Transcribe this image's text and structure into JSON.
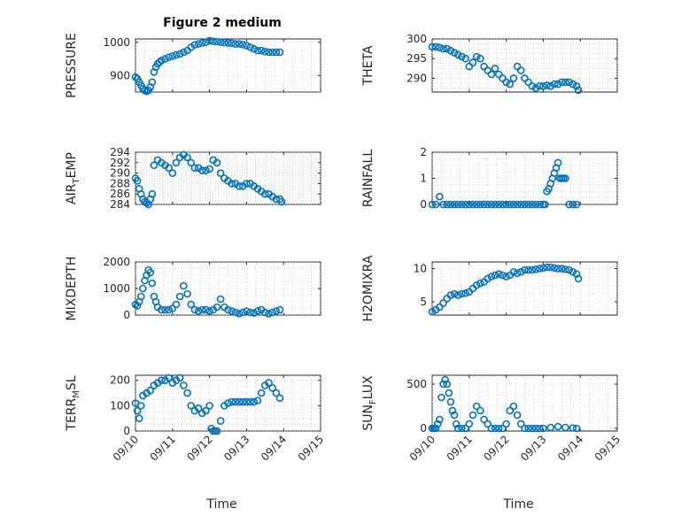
{
  "figure_title": "Figure 2 medium",
  "colors": {
    "marker": "#0072BD",
    "axis": "#262626",
    "grid": "#bdbdbd"
  },
  "x_tick_labels": [
    "09/10",
    "09/11",
    "09/12",
    "09/13",
    "09/14",
    "09/15"
  ],
  "chart_data": [
    {
      "type": "scatter",
      "ylabel": "PRESSURE",
      "xlabel": "",
      "title": "Figure 2 medium",
      "xlim": [
        0,
        5
      ],
      "ylim": [
        850,
        1010
      ],
      "yticks": [
        900,
        1000
      ],
      "grid": true,
      "x": [
        0.0,
        0.05,
        0.1,
        0.15,
        0.2,
        0.25,
        0.3,
        0.35,
        0.4,
        0.45,
        0.5,
        0.55,
        0.6,
        0.65,
        0.7,
        0.8,
        0.9,
        1.0,
        1.1,
        1.2,
        1.3,
        1.4,
        1.5,
        1.6,
        1.7,
        1.8,
        1.9,
        2.0,
        2.1,
        2.2,
        2.3,
        2.4,
        2.5,
        2.6,
        2.7,
        2.8,
        2.9,
        3.0,
        3.1,
        3.2,
        3.3,
        3.4,
        3.5,
        3.6,
        3.7,
        3.8,
        3.9
      ],
      "y": [
        895,
        890,
        880,
        870,
        860,
        855,
        852,
        855,
        865,
        880,
        910,
        925,
        935,
        940,
        945,
        950,
        955,
        958,
        962,
        965,
        970,
        975,
        985,
        992,
        995,
        998,
        1000,
        1005,
        1003,
        1002,
        1000,
        999,
        998,
        997,
        995,
        995,
        993,
        990,
        985,
        980,
        975,
        975,
        972,
        970,
        970,
        970,
        970
      ]
    },
    {
      "type": "scatter",
      "ylabel": "THETA",
      "xlabel": "",
      "xlim": [
        0,
        5
      ],
      "ylim": [
        286.5,
        300
      ],
      "yticks": [
        290,
        295,
        300
      ],
      "grid": true,
      "x": [
        0.0,
        0.1,
        0.2,
        0.3,
        0.4,
        0.5,
        0.6,
        0.7,
        0.8,
        0.9,
        1.0,
        1.1,
        1.2,
        1.3,
        1.4,
        1.5,
        1.6,
        1.7,
        1.8,
        1.9,
        2.0,
        2.1,
        2.2,
        2.3,
        2.4,
        2.5,
        2.6,
        2.7,
        2.8,
        2.9,
        3.0,
        3.1,
        3.2,
        3.3,
        3.4,
        3.5,
        3.6,
        3.7,
        3.8,
        3.9,
        3.95
      ],
      "y": [
        298,
        298,
        297.8,
        297.5,
        297.5,
        297,
        296.5,
        296,
        295.5,
        295,
        293,
        294,
        295.5,
        295,
        293,
        292,
        291,
        292.5,
        291,
        290,
        289,
        288.5,
        290,
        293,
        292,
        290,
        289,
        288,
        287.5,
        288,
        288,
        288.2,
        288,
        288.5,
        288.5,
        289,
        289,
        289,
        288.5,
        288,
        287
      ]
    },
    {
      "type": "scatter",
      "ylabel": "AIR_TEMP",
      "xlabel": "",
      "xlim": [
        0,
        5
      ],
      "ylim": [
        284,
        294
      ],
      "yticks": [
        284,
        286,
        288,
        290,
        292,
        294
      ],
      "grid": true,
      "x": [
        0.0,
        0.05,
        0.1,
        0.15,
        0.2,
        0.25,
        0.3,
        0.35,
        0.4,
        0.45,
        0.5,
        0.6,
        0.7,
        0.8,
        0.9,
        1.0,
        1.1,
        1.2,
        1.3,
        1.4,
        1.5,
        1.6,
        1.7,
        1.8,
        1.9,
        2.0,
        2.1,
        2.2,
        2.3,
        2.4,
        2.5,
        2.6,
        2.7,
        2.8,
        2.9,
        3.0,
        3.1,
        3.2,
        3.3,
        3.4,
        3.5,
        3.6,
        3.7,
        3.8,
        3.9,
        3.95
      ],
      "y": [
        289,
        288.5,
        287,
        286,
        285,
        284.5,
        284.3,
        284,
        285,
        286,
        291.5,
        292.5,
        292,
        291.5,
        291,
        290,
        292,
        293,
        293.5,
        293,
        292,
        291,
        291,
        290.5,
        290.5,
        290.8,
        292.5,
        292,
        290,
        289,
        288.5,
        288,
        288,
        287.5,
        287.5,
        288,
        288,
        287.5,
        287,
        286.5,
        286,
        286,
        285.5,
        285,
        285,
        284.5
      ]
    },
    {
      "type": "scatter",
      "ylabel": "RAINFALL",
      "xlabel": "",
      "xlim": [
        0,
        5
      ],
      "ylim": [
        0,
        2
      ],
      "yticks": [
        0,
        1,
        2
      ],
      "grid": true,
      "x": [
        0.0,
        0.1,
        0.2,
        0.3,
        0.4,
        0.5,
        0.6,
        0.7,
        0.8,
        0.9,
        1.0,
        1.1,
        1.2,
        1.3,
        1.4,
        1.5,
        1.6,
        1.7,
        1.8,
        1.9,
        2.0,
        2.1,
        2.2,
        2.3,
        2.4,
        2.5,
        2.6,
        2.7,
        2.8,
        2.9,
        3.0,
        3.05,
        3.1,
        3.15,
        3.2,
        3.25,
        3.3,
        3.35,
        3.4,
        3.45,
        3.5,
        3.55,
        3.6,
        3.7,
        3.8,
        3.9
      ],
      "y": [
        0,
        0,
        0.3,
        0,
        0,
        0,
        0,
        0,
        0,
        0,
        0,
        0,
        0,
        0,
        0,
        0,
        0,
        0,
        0,
        0,
        0,
        0,
        0,
        0,
        0,
        0,
        0,
        0,
        0,
        0,
        0,
        0,
        0.5,
        0.6,
        0.8,
        1.0,
        1.2,
        1.4,
        1.6,
        1.0,
        1.0,
        1.0,
        1.0,
        0,
        0,
        0
      ]
    },
    {
      "type": "scatter",
      "ylabel": "MIXDEPTH",
      "xlabel": "",
      "xlim": [
        0,
        5
      ],
      "ylim": [
        0,
        2000
      ],
      "yticks": [
        0,
        1000,
        2000
      ],
      "grid": true,
      "x": [
        0.0,
        0.05,
        0.1,
        0.15,
        0.2,
        0.25,
        0.3,
        0.35,
        0.4,
        0.45,
        0.5,
        0.55,
        0.6,
        0.7,
        0.8,
        0.9,
        1.0,
        1.1,
        1.2,
        1.3,
        1.4,
        1.5,
        1.6,
        1.7,
        1.8,
        1.9,
        2.0,
        2.1,
        2.2,
        2.3,
        2.4,
        2.5,
        2.6,
        2.7,
        2.8,
        2.9,
        3.0,
        3.1,
        3.2,
        3.3,
        3.4,
        3.5,
        3.6,
        3.7,
        3.8,
        3.9
      ],
      "y": [
        400,
        350,
        500,
        700,
        1000,
        1300,
        1500,
        1700,
        1600,
        1200,
        700,
        500,
        300,
        200,
        200,
        200,
        250,
        400,
        700,
        1100,
        800,
        400,
        200,
        150,
        200,
        200,
        150,
        200,
        300,
        600,
        300,
        200,
        150,
        100,
        50,
        100,
        150,
        100,
        80,
        150,
        200,
        100,
        50,
        100,
        150,
        200
      ]
    },
    {
      "type": "scatter",
      "ylabel": "H2OMIXRA",
      "xlabel": "",
      "xlim": [
        0,
        5
      ],
      "ylim": [
        3,
        11
      ],
      "yticks": [
        5,
        10
      ],
      "grid": true,
      "x": [
        0.0,
        0.1,
        0.2,
        0.3,
        0.4,
        0.5,
        0.6,
        0.7,
        0.8,
        0.9,
        1.0,
        1.1,
        1.2,
        1.3,
        1.4,
        1.5,
        1.6,
        1.7,
        1.8,
        1.9,
        2.0,
        2.1,
        2.2,
        2.3,
        2.4,
        2.5,
        2.6,
        2.7,
        2.8,
        2.9,
        3.0,
        3.1,
        3.2,
        3.3,
        3.4,
        3.5,
        3.6,
        3.7,
        3.8,
        3.9,
        3.95
      ],
      "y": [
        3.5,
        3.8,
        4.2,
        4.8,
        5.5,
        6.0,
        6.2,
        6.0,
        6.2,
        6.3,
        6.5,
        7.0,
        7.5,
        7.8,
        8.0,
        8.5,
        8.8,
        9.0,
        9.2,
        9.0,
        8.8,
        9.0,
        9.5,
        9.3,
        9.5,
        9.8,
        9.8,
        9.8,
        9.9,
        10.0,
        10.1,
        10.2,
        10.2,
        10.1,
        10.0,
        10.0,
        9.9,
        9.8,
        9.5,
        9.2,
        8.5
      ]
    },
    {
      "type": "scatter",
      "ylabel": "TERR_MSL",
      "xlabel": "Time",
      "xlim": [
        0,
        5
      ],
      "ylim": [
        0,
        220
      ],
      "yticks": [
        0,
        100,
        200
      ],
      "grid": true,
      "x": [
        0.0,
        0.05,
        0.1,
        0.15,
        0.2,
        0.3,
        0.4,
        0.5,
        0.6,
        0.7,
        0.8,
        0.9,
        1.0,
        1.1,
        1.2,
        1.3,
        1.4,
        1.5,
        1.6,
        1.7,
        1.8,
        1.9,
        2.0,
        2.05,
        2.1,
        2.15,
        2.2,
        2.3,
        2.4,
        2.5,
        2.6,
        2.7,
        2.8,
        2.9,
        3.0,
        3.1,
        3.2,
        3.3,
        3.4,
        3.5,
        3.6,
        3.7,
        3.8,
        3.9
      ],
      "y": [
        110,
        80,
        50,
        100,
        140,
        150,
        160,
        180,
        190,
        200,
        200,
        210,
        190,
        200,
        210,
        180,
        150,
        100,
        80,
        90,
        70,
        80,
        100,
        10,
        0,
        0,
        0,
        40,
        100,
        110,
        115,
        115,
        115,
        115,
        115,
        115,
        115,
        120,
        150,
        180,
        190,
        170,
        150,
        130
      ]
    },
    {
      "type": "scatter",
      "ylabel": "SUN_FLUX",
      "xlabel": "Time",
      "xlim": [
        0,
        5
      ],
      "ylim": [
        -30,
        600
      ],
      "yticks": [
        0,
        500
      ],
      "grid": true,
      "x": [
        0.0,
        0.05,
        0.1,
        0.15,
        0.2,
        0.25,
        0.3,
        0.35,
        0.4,
        0.45,
        0.5,
        0.55,
        0.6,
        0.65,
        0.7,
        0.8,
        0.9,
        1.0,
        1.1,
        1.2,
        1.3,
        1.4,
        1.5,
        1.6,
        1.7,
        1.8,
        1.9,
        2.0,
        2.1,
        2.2,
        2.3,
        2.4,
        2.5,
        2.6,
        2.7,
        2.8,
        2.9,
        3.0,
        3.2,
        3.4,
        3.6,
        3.8,
        3.9
      ],
      "y": [
        0,
        0,
        0,
        50,
        100,
        350,
        500,
        550,
        500,
        400,
        300,
        200,
        150,
        50,
        0,
        0,
        0,
        50,
        150,
        250,
        200,
        100,
        50,
        0,
        0,
        0,
        0,
        50,
        200,
        250,
        150,
        50,
        0,
        0,
        0,
        0,
        0,
        0,
        10,
        20,
        10,
        5,
        0
      ]
    }
  ]
}
